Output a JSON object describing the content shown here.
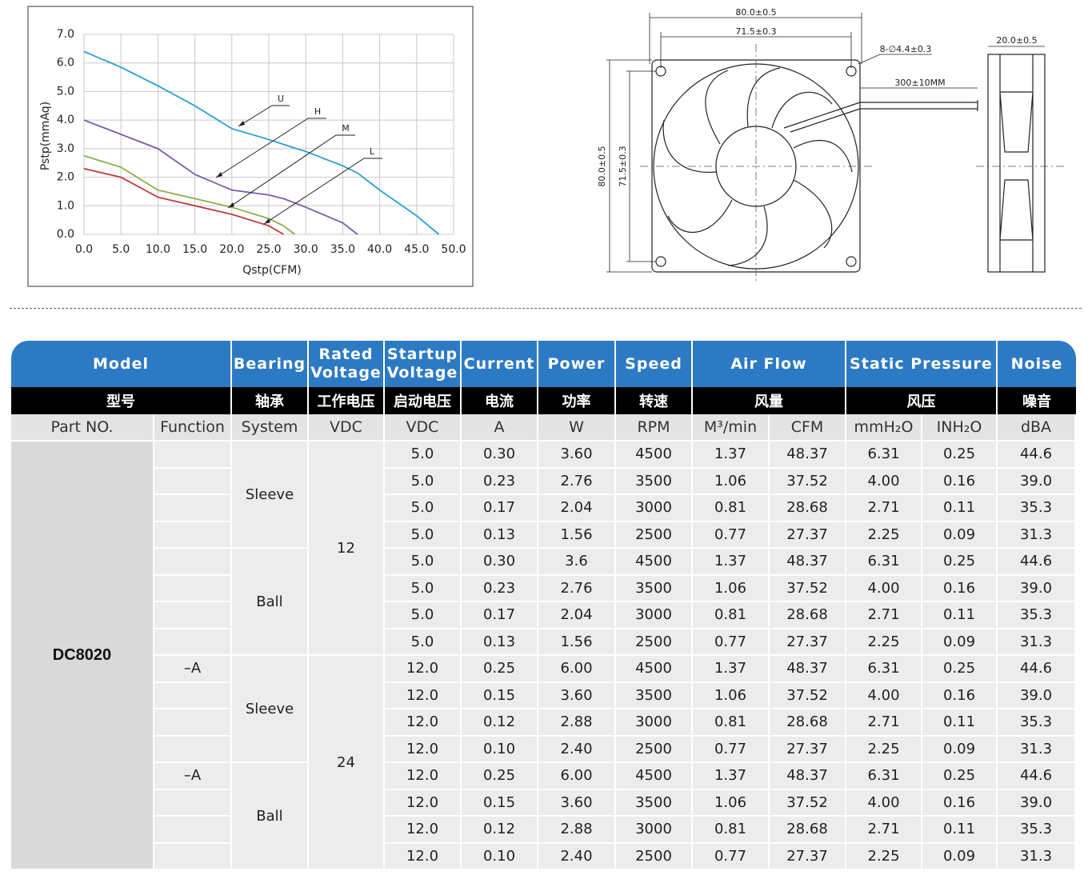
{
  "chart_data": {
    "type": "line",
    "xlabel": "Qstp(CFM)",
    "ylabel": "Pstp(mmAq)",
    "x": [
      0,
      5,
      10,
      15,
      20,
      25,
      27,
      28.5,
      30,
      35,
      37,
      40,
      45,
      48
    ],
    "series": [
      {
        "name": "U",
        "color": "#2a9fd0",
        "values": [
          6.4,
          5.85,
          5.2,
          4.5,
          3.7,
          3.32,
          3.15,
          3.02,
          2.9,
          2.4,
          2.15,
          1.55,
          0.65,
          0
        ]
      },
      {
        "name": "H",
        "color": "#7a5ea7",
        "values": [
          4.0,
          3.5,
          3.0,
          2.1,
          1.55,
          1.38,
          1.25,
          1.1,
          0.95,
          0.4,
          0,
          null,
          null,
          null
        ]
      },
      {
        "name": "M",
        "color": "#8ab04a",
        "values": [
          2.75,
          2.35,
          1.55,
          1.25,
          0.95,
          0.55,
          0.3,
          0,
          null,
          null,
          null,
          null,
          null,
          null
        ]
      },
      {
        "name": "L",
        "color": "#c0393b",
        "values": [
          2.3,
          2.0,
          1.3,
          1.0,
          0.7,
          0.3,
          0,
          null,
          null,
          null,
          null,
          null,
          null,
          null
        ]
      }
    ],
    "xlim": [
      0,
      50
    ],
    "ylim": [
      0,
      7
    ],
    "xticks": [
      {
        "value": 0,
        "label": "0.0"
      },
      {
        "value": 5,
        "label": "5.0"
      },
      {
        "value": 10,
        "label": "10.0"
      },
      {
        "value": 15,
        "label": "15.0"
      },
      {
        "value": 20,
        "label": "20.0"
      },
      {
        "value": 25,
        "label": "25.0"
      },
      {
        "value": 30,
        "label": "30.0"
      },
      {
        "value": 35,
        "label": "35.0"
      },
      {
        "value": 40,
        "label": "40.0"
      },
      {
        "value": 45,
        "label": "45.0"
      },
      {
        "value": 50,
        "label": "50.0"
      }
    ],
    "yticks": [
      {
        "value": 0,
        "label": "0.0"
      },
      {
        "value": 1,
        "label": "1.0"
      },
      {
        "value": 2,
        "label": "2.0"
      },
      {
        "value": 3,
        "label": "3.0"
      },
      {
        "value": 4,
        "label": "4.0"
      },
      {
        "value": 5,
        "label": "5.0"
      },
      {
        "value": 6,
        "label": "6.0"
      },
      {
        "value": 7,
        "label": "7.0"
      }
    ],
    "grid": true
  },
  "diagram": {
    "dimensions": [
      "80.0±0.5",
      "71.5±0.3",
      "8-∅4.4±0.3",
      "300±10MM",
      "20.0±0.5",
      "80.0±0.5",
      "71.5±0.3"
    ]
  },
  "table": {
    "header": [
      "Model",
      "Bearing",
      "Rated Voltage",
      "Startup Voltage",
      "Current",
      "Power",
      "Speed",
      "Air Flow",
      "Static Pressure",
      "Noise"
    ],
    "header_cn": [
      "型号",
      "轴承",
      "工作电压",
      "启动电压",
      "电流",
      "功率",
      "转速",
      "风量",
      "风压",
      "噪音"
    ],
    "units": [
      "Part NO.",
      "Function",
      "System",
      "VDC",
      "VDC",
      "A",
      "W",
      "RPM",
      "M³/min",
      "CFM",
      "mmH₂O",
      "INH₂O",
      "dBA"
    ],
    "part_no": "DC8020",
    "functions": [
      null,
      null,
      null,
      null,
      null,
      null,
      null,
      null,
      "–A",
      null,
      null,
      null,
      "–A",
      null,
      null,
      null
    ],
    "bearing_groups": [
      "Sleeve",
      "Ball",
      "Sleeve",
      "Ball"
    ],
    "voltage_groups": [
      "12",
      "24"
    ],
    "rows": [
      [
        "5.0",
        "0.30",
        "3.60",
        "4500",
        "1.37",
        "48.37",
        "6.31",
        "0.25",
        "44.6"
      ],
      [
        "5.0",
        "0.23",
        "2.76",
        "3500",
        "1.06",
        "37.52",
        "4.00",
        "0.16",
        "39.0"
      ],
      [
        "5.0",
        "0.17",
        "2.04",
        "3000",
        "0.81",
        "28.68",
        "2.71",
        "0.11",
        "35.3"
      ],
      [
        "5.0",
        "0.13",
        "1.56",
        "2500",
        "0.77",
        "27.37",
        "2.25",
        "0.09",
        "31.3"
      ],
      [
        "5.0",
        "0.30",
        "3.6",
        "4500",
        "1.37",
        "48.37",
        "6.31",
        "0.25",
        "44.6"
      ],
      [
        "5.0",
        "0.23",
        "2.76",
        "3500",
        "1.06",
        "37.52",
        "4.00",
        "0.16",
        "39.0"
      ],
      [
        "5.0",
        "0.17",
        "2.04",
        "3000",
        "0.81",
        "28.68",
        "2.71",
        "0.11",
        "35.3"
      ],
      [
        "5.0",
        "0.13",
        "1.56",
        "2500",
        "0.77",
        "27.37",
        "2.25",
        "0.09",
        "31.3"
      ],
      [
        "12.0",
        "0.25",
        "6.00",
        "4500",
        "1.37",
        "48.37",
        "6.31",
        "0.25",
        "44.6"
      ],
      [
        "12.0",
        "0.15",
        "3.60",
        "3500",
        "1.06",
        "37.52",
        "4.00",
        "0.16",
        "39.0"
      ],
      [
        "12.0",
        "0.12",
        "2.88",
        "3000",
        "0.81",
        "28.68",
        "2.71",
        "0.11",
        "35.3"
      ],
      [
        "12.0",
        "0.10",
        "2.40",
        "2500",
        "0.77",
        "27.37",
        "2.25",
        "0.09",
        "31.3"
      ],
      [
        "12.0",
        "0.25",
        "6.00",
        "4500",
        "1.37",
        "48.37",
        "6.31",
        "0.25",
        "44.6"
      ],
      [
        "12.0",
        "0.15",
        "3.60",
        "3500",
        "1.06",
        "37.52",
        "4.00",
        "0.16",
        "39.0"
      ],
      [
        "12.0",
        "0.12",
        "2.88",
        "3000",
        "0.81",
        "28.68",
        "2.71",
        "0.11",
        "35.3"
      ],
      [
        "12.0",
        "0.10",
        "2.40",
        "2500",
        "0.77",
        "27.37",
        "2.25",
        "0.09",
        "31.3"
      ]
    ]
  }
}
